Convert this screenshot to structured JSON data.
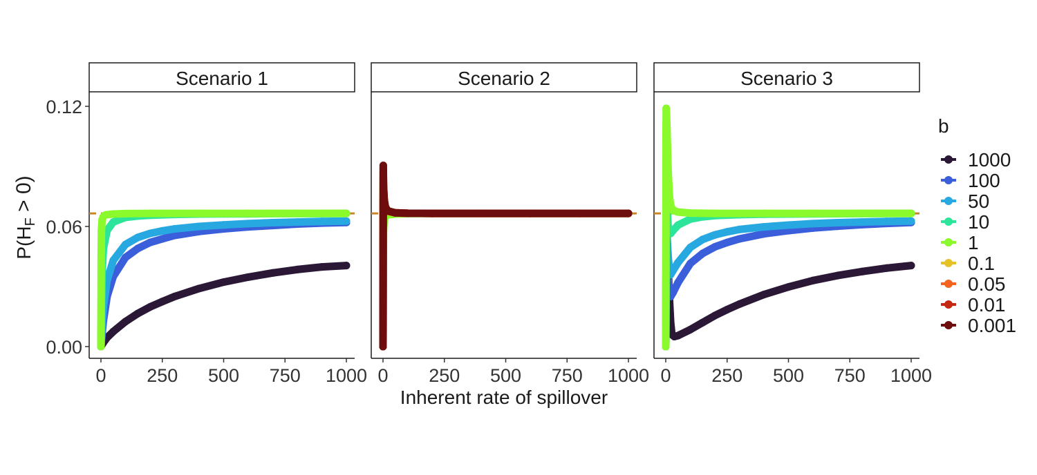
{
  "chart_data": {
    "type": "scatter",
    "xlabel": "Inherent rate of spillover",
    "ylabel_main": "P(H",
    "ylabel_sub": "F",
    "ylabel_rest": " > 0)",
    "xlim": [
      0,
      1000
    ],
    "ylim": [
      0,
      0.12
    ],
    "x_ticks": [
      0,
      250,
      500,
      750,
      1000
    ],
    "x_tick_labels": [
      "0",
      "250",
      "500",
      "750",
      "1000"
    ],
    "y_ticks": [
      0,
      0.06,
      0.12
    ],
    "y_tick_labels": [
      "0.00",
      "0.06",
      "0.12"
    ],
    "reference_line": {
      "y": 0.0665,
      "style": "dashed",
      "color": "#c8862a"
    },
    "legend": {
      "title": "b",
      "placement": "right",
      "entries": [
        {
          "label": "1000",
          "color": "#2b1736"
        },
        {
          "label": "100",
          "color": "#3b5fdb"
        },
        {
          "label": "50",
          "color": "#27a8e0"
        },
        {
          "label": "10",
          "color": "#2de59a"
        },
        {
          "label": "1",
          "color": "#8afa2c"
        },
        {
          "label": "0.1",
          "color": "#e6c229"
        },
        {
          "label": "0.05",
          "color": "#f5631e"
        },
        {
          "label": "0.01",
          "color": "#c42810"
        },
        {
          "label": "0.001",
          "color": "#6e0d0d"
        }
      ]
    },
    "panels": [
      {
        "title": "Scenario 1",
        "series": [
          {
            "name": "1000",
            "x": [
              0,
              10,
              25,
              50,
              100,
              150,
              200,
              250,
              300,
              400,
              500,
              600,
              700,
              800,
              900,
              1000
            ],
            "y": [
              0.0,
              0.002,
              0.0045,
              0.0075,
              0.0125,
              0.0165,
              0.0198,
              0.0225,
              0.025,
              0.029,
              0.0322,
              0.0347,
              0.0368,
              0.0385,
              0.0398,
              0.0405
            ]
          },
          {
            "name": "100",
            "x": [
              0,
              5,
              10,
              25,
              50,
              100,
              150,
              200,
              250,
              300,
              400,
              500,
              600,
              700,
              800,
              900,
              1000
            ],
            "y": [
              0.0,
              0.007,
              0.013,
              0.025,
              0.035,
              0.0445,
              0.049,
              0.052,
              0.0538,
              0.0555,
              0.0575,
              0.0588,
              0.0598,
              0.0605,
              0.0612,
              0.0617,
              0.062
            ]
          },
          {
            "name": "50",
            "x": [
              0,
              5,
              10,
              25,
              50,
              100,
              150,
              200,
              250,
              300,
              400,
              500,
              600,
              700,
              800,
              900,
              1000
            ],
            "y": [
              0.0,
              0.012,
              0.02,
              0.033,
              0.043,
              0.051,
              0.0545,
              0.0565,
              0.0578,
              0.0588,
              0.06,
              0.0608,
              0.0614,
              0.0619,
              0.0622,
              0.0625,
              0.0627
            ]
          },
          {
            "name": "10",
            "x": [
              0,
              2,
              5,
              10,
              25,
              50,
              100,
              150,
              200,
              300,
              400,
              500,
              600,
              700,
              800,
              900,
              1000
            ],
            "y": [
              0.0,
              0.02,
              0.038,
              0.049,
              0.058,
              0.0622,
              0.0645,
              0.0652,
              0.0656,
              0.066,
              0.0662,
              0.0663,
              0.0663,
              0.0664,
              0.0664,
              0.0664,
              0.0665
            ]
          },
          {
            "name": "1",
            "x": [
              0,
              1,
              2,
              5,
              10,
              20,
              50,
              100,
              200,
              400,
              600,
              800,
              1000
            ],
            "y": [
              0.0,
              0.047,
              0.058,
              0.0635,
              0.065,
              0.0658,
              0.0662,
              0.0664,
              0.0665,
              0.0665,
              0.0665,
              0.0665,
              0.0665
            ]
          }
        ]
      },
      {
        "title": "Scenario 2",
        "series": [
          {
            "name": "1",
            "x": [
              0,
              1,
              2,
              5,
              10,
              20,
              50,
              100,
              200,
              400,
              600,
              800,
              1000
            ],
            "y": [
              0.0,
              0.047,
              0.058,
              0.0635,
              0.065,
              0.0658,
              0.0662,
              0.0664,
              0.0665,
              0.0665,
              0.0665,
              0.0665,
              0.0665
            ]
          },
          {
            "name": "0.1",
            "x": [
              0,
              1,
              2,
              5,
              10,
              20,
              50,
              100,
              200,
              400,
              600,
              800,
              1000
            ],
            "y": [
              0.0,
              0.084,
              0.078,
              0.072,
              0.069,
              0.0675,
              0.0668,
              0.0666,
              0.0665,
              0.0665,
              0.0665,
              0.0665,
              0.0665
            ]
          },
          {
            "name": "0.05",
            "x": [
              0,
              1,
              2,
              5,
              10,
              20,
              50,
              100,
              200,
              400,
              600,
              800,
              1000
            ],
            "y": [
              0.0,
              0.087,
              0.079,
              0.0725,
              0.0693,
              0.0676,
              0.0668,
              0.0666,
              0.0665,
              0.0665,
              0.0665,
              0.0665,
              0.0665
            ]
          },
          {
            "name": "0.01",
            "x": [
              0,
              1,
              2,
              5,
              10,
              20,
              50,
              100,
              200,
              400,
              600,
              800,
              1000
            ],
            "y": [
              0.0,
              0.089,
              0.08,
              0.073,
              0.0695,
              0.0677,
              0.0668,
              0.0666,
              0.0665,
              0.0665,
              0.0665,
              0.0665,
              0.0665
            ]
          },
          {
            "name": "0.001",
            "x": [
              0,
              1,
              2,
              5,
              10,
              20,
              50,
              100,
              200,
              400,
              600,
              800,
              1000
            ],
            "y": [
              0.0,
              0.0905,
              0.0805,
              0.0732,
              0.0697,
              0.0678,
              0.0668,
              0.0666,
              0.0665,
              0.0665,
              0.0665,
              0.0665,
              0.0665
            ]
          }
        ]
      },
      {
        "title": "Scenario 3",
        "series": [
          {
            "name": "1000",
            "x": [
              0,
              2,
              5,
              10,
              15,
              20,
              25,
              35,
              50,
              100,
              150,
              200,
              250,
              300,
              400,
              500,
              600,
              700,
              800,
              900,
              1000
            ],
            "y": [
              0.0,
              0.055,
              0.05,
              0.038,
              0.024,
              0.012,
              0.006,
              0.005,
              0.0055,
              0.0085,
              0.012,
              0.0155,
              0.0185,
              0.0212,
              0.026,
              0.0298,
              0.033,
              0.0355,
              0.0375,
              0.0392,
              0.0405
            ]
          },
          {
            "name": "100",
            "x": [
              0,
              2,
              5,
              10,
              15,
              20,
              30,
              50,
              100,
              150,
              200,
              250,
              300,
              400,
              500,
              600,
              700,
              800,
              900,
              1000
            ],
            "y": [
              0.0,
              0.035,
              0.04,
              0.033,
              0.027,
              0.025,
              0.027,
              0.032,
              0.0415,
              0.0465,
              0.0498,
              0.052,
              0.0538,
              0.0563,
              0.0579,
              0.0592,
              0.0601,
              0.0609,
              0.0615,
              0.062
            ]
          },
          {
            "name": "50",
            "x": [
              0,
              2,
              5,
              10,
              15,
              20,
              30,
              50,
              100,
              150,
              200,
              250,
              300,
              400,
              500,
              600,
              700,
              800,
              900,
              1000
            ],
            "y": [
              0.0,
              0.05,
              0.055,
              0.045,
              0.038,
              0.036,
              0.038,
              0.042,
              0.0495,
              0.0535,
              0.0558,
              0.0573,
              0.0585,
              0.0598,
              0.0607,
              0.0614,
              0.0619,
              0.0622,
              0.0625,
              0.0627
            ]
          },
          {
            "name": "10",
            "x": [
              0,
              2,
              5,
              10,
              15,
              20,
              30,
              50,
              100,
              150,
              200,
              300,
              400,
              500,
              600,
              800,
              1000
            ],
            "y": [
              0.0,
              0.078,
              0.07,
              0.06,
              0.0565,
              0.0565,
              0.058,
              0.0607,
              0.0637,
              0.0648,
              0.0654,
              0.0659,
              0.0661,
              0.0662,
              0.0663,
              0.0664,
              0.0665
            ]
          },
          {
            "name": "1",
            "x": [
              0,
              1,
              2,
              3,
              5,
              8,
              10,
              15,
              20,
              30,
              50,
              100,
              200,
              400,
              600,
              800,
              1000
            ],
            "y": [
              0.0,
              0.1,
              0.119,
              0.116,
              0.108,
              0.095,
              0.087,
              0.075,
              0.0705,
              0.068,
              0.0672,
              0.0667,
              0.0665,
              0.0665,
              0.0665,
              0.0665,
              0.0665
            ]
          }
        ]
      }
    ]
  }
}
